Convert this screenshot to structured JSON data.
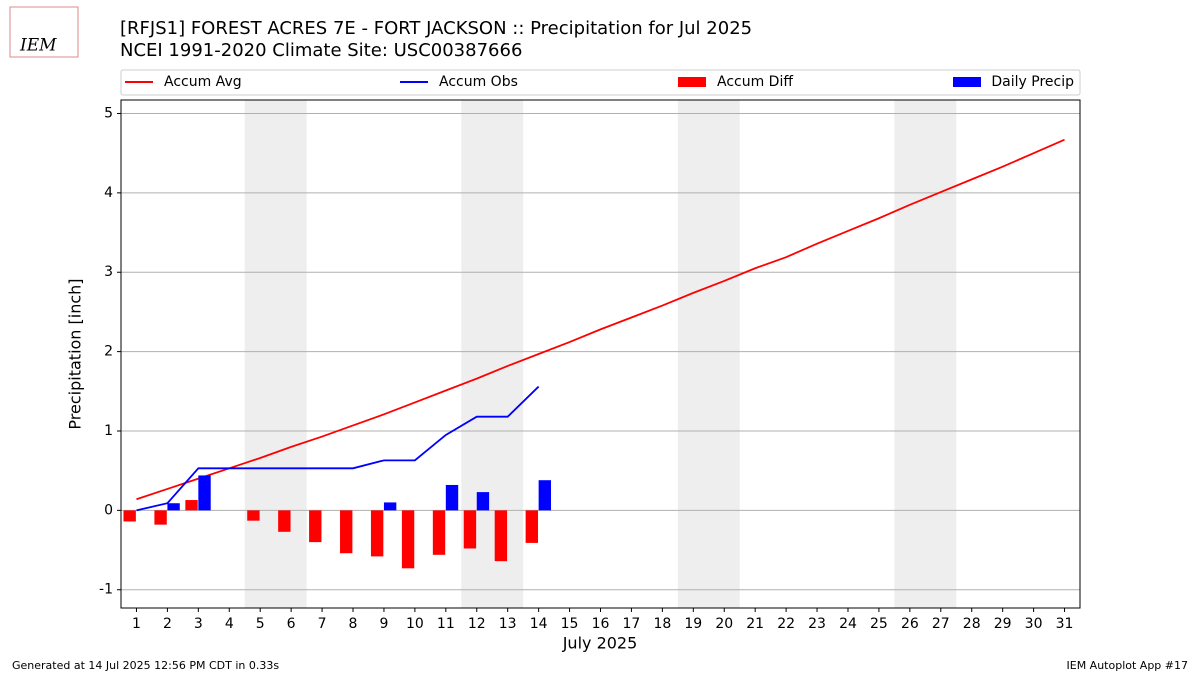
{
  "chart_data": {
    "type": "combo",
    "title": "[RFJS1] FOREST ACRES 7E - FORT JACKSON :: Precipitation for Jul 2025",
    "subtitle": "NCEI 1991-2020 Climate Site: USC00387666",
    "x_label": "July 2025",
    "y_label": "Precipitation [inch]",
    "logo_text": "IEM",
    "footer_left": "Generated at 14 Jul 2025 12:56 PM CDT in 0.33s",
    "footer_right": "IEM Autoplot App #17",
    "x": [
      1,
      2,
      3,
      4,
      5,
      6,
      7,
      8,
      9,
      10,
      11,
      12,
      13,
      14,
      15,
      16,
      17,
      18,
      19,
      20,
      21,
      22,
      23,
      24,
      25,
      26,
      27,
      28,
      29,
      30,
      31
    ],
    "xlim": [
      0.5,
      31.5
    ],
    "xticks": [
      1,
      2,
      3,
      4,
      5,
      6,
      7,
      8,
      9,
      10,
      11,
      12,
      13,
      14,
      15,
      16,
      17,
      18,
      19,
      20,
      21,
      22,
      23,
      24,
      25,
      26,
      27,
      28,
      29,
      30,
      31
    ],
    "ylim": [
      -1.23,
      5.17
    ],
    "yticks": [
      -1,
      0,
      1,
      2,
      3,
      4,
      5
    ],
    "grid": true,
    "shaded_spans": [
      [
        4.5,
        6.5
      ],
      [
        11.5,
        13.5
      ],
      [
        18.5,
        20.5
      ],
      [
        25.5,
        27.5
      ]
    ],
    "shade_color": "#eeeeee",
    "legend": "top",
    "series": [
      {
        "name": "Accum Avg",
        "type": "line",
        "color": "#ff0000",
        "values": [
          0.14,
          0.27,
          0.4,
          0.53,
          0.66,
          0.8,
          0.93,
          1.07,
          1.21,
          1.36,
          1.51,
          1.66,
          1.82,
          1.97,
          2.12,
          2.28,
          2.43,
          2.58,
          2.74,
          2.89,
          3.05,
          3.19,
          3.36,
          3.52,
          3.68,
          3.85,
          4.01,
          4.17,
          4.33,
          4.5,
          4.67
        ]
      },
      {
        "name": "Accum Obs",
        "type": "line",
        "color": "#0000ff",
        "values": [
          0.0,
          0.09,
          0.53,
          0.53,
          0.53,
          0.53,
          0.53,
          0.53,
          0.63,
          0.63,
          0.95,
          1.18,
          1.18,
          1.56,
          null,
          null,
          null,
          null,
          null,
          null,
          null,
          null,
          null,
          null,
          null,
          null,
          null,
          null,
          null,
          null,
          null
        ]
      },
      {
        "name": "Accum Diff",
        "type": "bar",
        "color": "#ff0000",
        "offset": -0.42,
        "values": [
          -0.14,
          -0.18,
          0.13,
          0.0,
          -0.13,
          -0.27,
          -0.4,
          -0.54,
          -0.58,
          -0.73,
          -0.56,
          -0.48,
          -0.64,
          -0.41,
          null,
          null,
          null,
          null,
          null,
          null,
          null,
          null,
          null,
          null,
          null,
          null,
          null,
          null,
          null,
          null,
          null
        ]
      },
      {
        "name": "Daily Precip",
        "type": "bar",
        "color": "#0000ff",
        "offset": 0.0,
        "values": [
          0.0,
          0.09,
          0.44,
          0.0,
          0.0,
          0.0,
          0.0,
          0.0,
          0.1,
          0.0,
          0.32,
          0.23,
          0.0,
          0.38,
          null,
          null,
          null,
          null,
          null,
          null,
          null,
          null,
          null,
          null,
          null,
          null,
          null,
          null,
          null,
          null,
          null
        ]
      }
    ]
  }
}
